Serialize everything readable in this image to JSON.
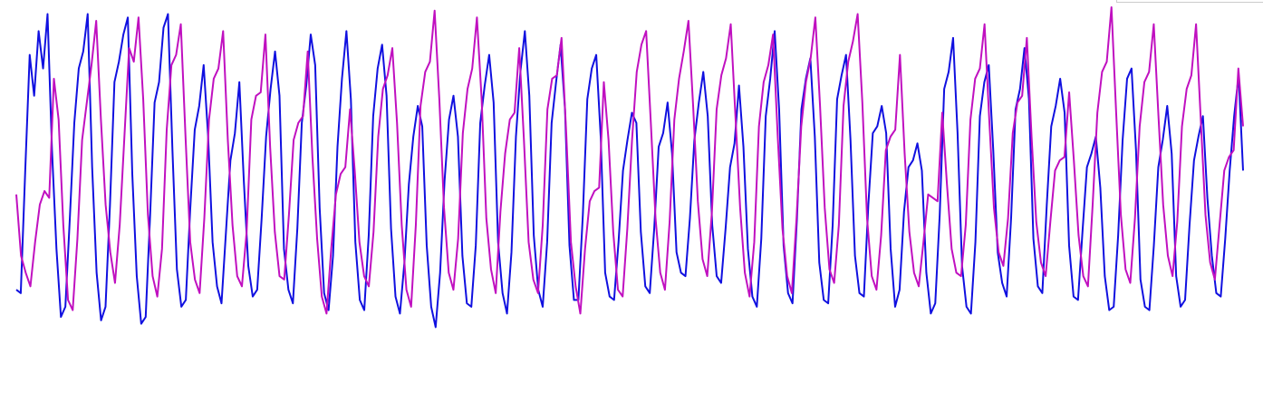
{
  "chart_data": {
    "type": "line",
    "title": "",
    "xlabel": "",
    "ylabel": "",
    "grid": false,
    "x_count": 280,
    "ylim": [
      0,
      1
    ],
    "cycle_length": 10.35,
    "series": [
      {
        "color": "#1010e0",
        "sample_values": [
          0.17,
          0.16,
          0.52,
          0.86,
          0.74,
          0.93,
          0.82,
          0.98,
          0.58,
          0.29,
          0.09,
          0.12,
          0.38,
          0.66,
          0.82,
          0.87,
          0.98,
          0.53,
          0.22,
          0.08,
          0.12,
          0.42,
          0.78,
          0.84,
          0.92,
          0.97,
          0.51,
          0.21,
          0.07,
          0.09,
          0.39,
          0.72,
          0.78,
          0.94,
          0.98,
          0.58,
          0.23,
          0.12,
          0.14,
          0.41,
          0.64,
          0.71,
          0.83,
          0.62,
          0.31,
          0.18,
          0.13,
          0.34,
          0.55,
          0.63,
          0.78,
          0.49,
          0.24,
          0.15,
          0.17,
          0.38,
          0.62,
          0.76,
          0.87,
          0.74,
          0.29,
          0.17,
          0.13,
          0.35,
          0.66,
          0.77,
          0.92,
          0.83,
          0.41,
          0.16,
          0.11,
          0.27,
          0.59,
          0.79,
          0.93,
          0.73,
          0.31,
          0.14,
          0.11,
          0.33,
          0.68,
          0.82,
          0.89,
          0.74,
          0.35,
          0.15,
          0.1,
          0.25,
          0.48,
          0.62,
          0.71,
          0.65,
          0.3,
          0.12,
          0.06,
          0.22,
          0.49,
          0.67,
          0.74,
          0.62,
          0.27,
          0.13,
          0.12,
          0.3,
          0.66,
          0.77,
          0.86,
          0.72,
          0.31,
          0.16,
          0.1,
          0.28,
          0.62,
          0.81,
          0.93,
          0.74,
          0.33,
          0.17,
          0.12,
          0.31,
          0.66,
          0.78,
          0.89,
          0.7,
          0.3,
          0.14,
          0.14,
          0.39,
          0.73,
          0.82,
          0.86,
          0.62,
          0.22,
          0.15,
          0.14,
          0.31,
          0.52,
          0.61,
          0.69,
          0.66,
          0.34,
          0.18,
          0.16,
          0.35,
          0.59,
          0.63,
          0.72,
          0.57,
          0.28,
          0.22,
          0.21,
          0.38,
          0.61,
          0.72,
          0.81,
          0.68,
          0.36,
          0.21,
          0.19,
          0.35,
          0.53,
          0.6,
          0.77,
          0.59,
          0.29,
          0.15,
          0.12,
          0.32,
          0.68,
          0.79,
          0.93,
          0.7,
          0.3,
          0.16,
          0.13,
          0.38,
          0.7,
          0.79,
          0.85,
          0.62,
          0.25,
          0.14,
          0.13,
          0.36,
          0.73,
          0.8,
          0.86,
          0.61,
          0.27,
          0.16,
          0.15,
          0.42,
          0.63,
          0.65,
          0.71,
          0.63,
          0.29,
          0.12,
          0.17,
          0.4,
          0.53,
          0.55,
          0.6,
          0.52,
          0.22,
          0.1,
          0.13,
          0.39,
          0.76,
          0.81,
          0.91,
          0.63,
          0.24,
          0.12,
          0.1,
          0.31,
          0.68,
          0.78,
          0.83,
          0.58,
          0.28,
          0.19,
          0.15,
          0.38,
          0.7,
          0.76,
          0.88,
          0.73,
          0.32,
          0.18,
          0.16,
          0.42,
          0.65,
          0.71,
          0.79,
          0.69,
          0.3,
          0.15,
          0.14,
          0.34,
          0.53,
          0.57,
          0.62,
          0.47,
          0.21,
          0.11,
          0.12,
          0.33,
          0.61,
          0.79,
          0.82,
          0.58,
          0.2,
          0.12,
          0.11,
          0.3,
          0.53,
          0.61,
          0.71,
          0.57,
          0.21,
          0.12,
          0.14,
          0.36,
          0.55,
          0.62,
          0.68,
          0.44,
          0.27,
          0.16,
          0.15,
          0.32,
          0.52,
          0.68,
          0.8,
          0.52
        ]
      },
      {
        "color": "#c010c0",
        "sample_values": [
          0.45,
          0.27,
          0.22,
          0.18,
          0.31,
          0.42,
          0.46,
          0.44,
          0.79,
          0.67,
          0.36,
          0.14,
          0.11,
          0.32,
          0.61,
          0.72,
          0.83,
          0.96,
          0.67,
          0.42,
          0.28,
          0.19,
          0.36,
          0.62,
          0.88,
          0.84,
          0.97,
          0.73,
          0.39,
          0.21,
          0.15,
          0.29,
          0.64,
          0.83,
          0.86,
          0.95,
          0.62,
          0.31,
          0.2,
          0.16,
          0.38,
          0.67,
          0.79,
          0.82,
          0.93,
          0.61,
          0.36,
          0.21,
          0.18,
          0.34,
          0.67,
          0.74,
          0.75,
          0.92,
          0.59,
          0.34,
          0.21,
          0.2,
          0.39,
          0.61,
          0.66,
          0.68,
          0.87,
          0.56,
          0.32,
          0.15,
          0.1,
          0.29,
          0.45,
          0.51,
          0.53,
          0.7,
          0.52,
          0.31,
          0.21,
          0.18,
          0.34,
          0.62,
          0.76,
          0.8,
          0.88,
          0.66,
          0.36,
          0.17,
          0.12,
          0.36,
          0.71,
          0.81,
          0.84,
          0.99,
          0.73,
          0.41,
          0.22,
          0.17,
          0.32,
          0.63,
          0.76,
          0.82,
          0.97,
          0.73,
          0.38,
          0.23,
          0.16,
          0.4,
          0.57,
          0.67,
          0.69,
          0.88,
          0.61,
          0.31,
          0.2,
          0.16,
          0.36,
          0.7,
          0.79,
          0.8,
          0.91,
          0.63,
          0.31,
          0.18,
          0.1,
          0.29,
          0.43,
          0.46,
          0.47,
          0.78,
          0.61,
          0.34,
          0.17,
          0.15,
          0.35,
          0.61,
          0.81,
          0.89,
          0.93,
          0.66,
          0.38,
          0.22,
          0.17,
          0.37,
          0.67,
          0.79,
          0.87,
          0.96,
          0.71,
          0.43,
          0.26,
          0.21,
          0.4,
          0.7,
          0.8,
          0.85,
          0.95,
          0.68,
          0.41,
          0.22,
          0.15,
          0.31,
          0.65,
          0.78,
          0.83,
          0.92,
          0.62,
          0.35,
          0.21,
          0.16,
          0.38,
          0.65,
          0.78,
          0.85,
          0.97,
          0.71,
          0.41,
          0.23,
          0.19,
          0.36,
          0.71,
          0.84,
          0.9,
          0.98,
          0.72,
          0.38,
          0.21,
          0.17,
          0.33,
          0.58,
          0.62,
          0.64,
          0.86,
          0.57,
          0.34,
          0.22,
          0.18,
          0.31,
          0.45,
          0.44,
          0.43,
          0.69,
          0.48,
          0.29,
          0.22,
          0.21,
          0.36,
          0.67,
          0.79,
          0.82,
          0.95,
          0.67,
          0.41,
          0.28,
          0.24,
          0.38,
          0.63,
          0.72,
          0.74,
          0.91,
          0.62,
          0.37,
          0.25,
          0.21,
          0.37,
          0.52,
          0.55,
          0.56,
          0.75,
          0.55,
          0.33,
          0.21,
          0.18,
          0.42,
          0.69,
          0.81,
          0.84,
          1.0,
          0.69,
          0.39,
          0.23,
          0.19,
          0.38,
          0.65,
          0.78,
          0.81,
          0.95,
          0.68,
          0.42,
          0.27,
          0.21,
          0.37,
          0.65,
          0.76,
          0.8,
          0.95,
          0.67,
          0.39,
          0.25,
          0.2,
          0.36,
          0.52,
          0.56,
          0.58,
          0.82,
          0.65
        ]
      }
    ]
  }
}
